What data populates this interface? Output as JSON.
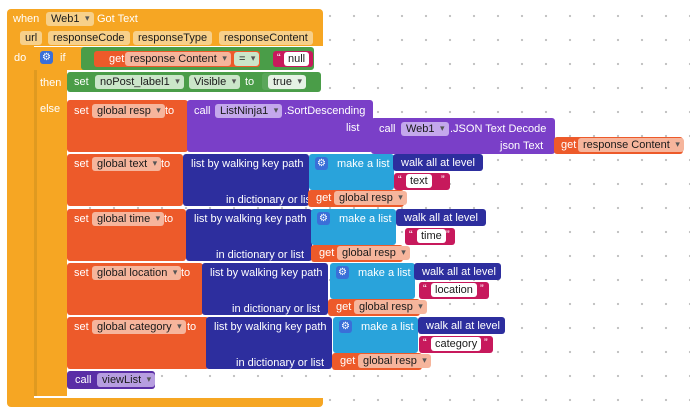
{
  "event": {
    "when": "when",
    "component": "Web1",
    "event_name": "Got Text",
    "params": [
      "url",
      "responseCode",
      "responseType",
      "responseContent"
    ]
  },
  "keywords": {
    "do": "do",
    "if": "if",
    "then": "then",
    "else": "else",
    "set": "set",
    "to": "to",
    "get": "get",
    "call": "call",
    "list": "list",
    "json_text": "json Text",
    "list_by_walking": "list by walking key path",
    "in_dict": "in dictionary or list",
    "make_a_list": "make a list",
    "walk_all": "walk all at level",
    "eq": "=",
    "dot_visible": "Visible",
    "dot_sort": ".SortDescending",
    "dot_json": ".JSON Text Decode"
  },
  "if_block": {
    "get_var": "response Content",
    "compare_to": "null",
    "then_target": "noPost_label1",
    "then_value": "true"
  },
  "else_block": {
    "resp_var": "global resp",
    "sort_component": "ListNinja1",
    "decode_component": "Web1",
    "decode_arg_var": "response Content",
    "walks": [
      {
        "var": "global text",
        "key": "text",
        "from": "global resp"
      },
      {
        "var": "global time",
        "key": "time",
        "from": "global resp"
      },
      {
        "var": "global location",
        "key": "location",
        "from": "global resp"
      },
      {
        "var": "global category",
        "key": "category",
        "from": "global resp"
      }
    ],
    "final_call": "viewList"
  },
  "colors": {
    "event": "#f5a623",
    "control": "#4a9d48",
    "logic": "#5aa65a",
    "variable": "#ed5a2a",
    "component": "#7a3fc8",
    "component_method": "#5a2ea6",
    "dictionary": "#2d2e9e",
    "list": "#29a3db",
    "text": "#c7195c"
  }
}
